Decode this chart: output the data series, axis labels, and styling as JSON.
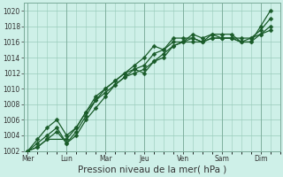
{
  "title": "",
  "xlabel": "Pression niveau de la mer( hPa )",
  "ylabel": "",
  "bg_color": "#cef0e8",
  "grid_color": "#99ccbb",
  "line_color": "#1a5c2a",
  "ylim": [
    1002,
    1021
  ],
  "yticks": [
    1002,
    1004,
    1006,
    1008,
    1010,
    1012,
    1014,
    1016,
    1018,
    1020
  ],
  "day_labels": [
    "Mer",
    "Lun",
    "Mar",
    "Jeu",
    "Ven",
    "Sam",
    "Dim"
  ],
  "day_positions": [
    0,
    1,
    2,
    3,
    4,
    5,
    6
  ],
  "xlim": [
    -0.1,
    6.5
  ],
  "line1_x": [
    0.0,
    0.25,
    0.5,
    0.75,
    1.0,
    1.25,
    1.5,
    1.75,
    2.0,
    2.25,
    2.5,
    2.75,
    3.0,
    3.25,
    3.5,
    3.75,
    4.0,
    4.25,
    4.5,
    4.75,
    5.0,
    5.25,
    5.5,
    5.75,
    6.0,
    6.25
  ],
  "line1_y": [
    1002,
    1003.5,
    1005,
    1006,
    1004,
    1005,
    1007,
    1009,
    1010,
    1011,
    1012,
    1013,
    1014,
    1015.5,
    1015,
    1016.5,
    1016.5,
    1016.5,
    1016,
    1017,
    1017,
    1017,
    1016,
    1016,
    1018,
    1020
  ],
  "line2_x": [
    0.0,
    0.25,
    0.5,
    0.75,
    1.0,
    1.25,
    1.5,
    1.75,
    2.0,
    2.25,
    2.5,
    2.75,
    3.0,
    3.25,
    3.5,
    3.75,
    4.0,
    4.25,
    4.5,
    4.75,
    5.0,
    5.25,
    5.5,
    5.75,
    6.0,
    6.25
  ],
  "line2_y": [
    1002,
    1003,
    1004,
    1005,
    1003,
    1004,
    1006,
    1007.5,
    1009,
    1010.5,
    1011.5,
    1012.5,
    1012,
    1013.5,
    1014.5,
    1015.5,
    1016,
    1016.5,
    1016,
    1016.5,
    1016.5,
    1016.5,
    1016,
    1016,
    1017,
    1018
  ],
  "line3_x": [
    0.0,
    0.25,
    0.5,
    0.75,
    1.0,
    1.25,
    1.5,
    1.75,
    2.0,
    2.25,
    2.5,
    2.75,
    3.0,
    3.25,
    3.5,
    3.75,
    4.0,
    4.25,
    4.5,
    4.75,
    5.0,
    5.25,
    5.5,
    5.75,
    6.0,
    6.25
  ],
  "line3_y": [
    1002,
    1002.5,
    1003.5,
    1004.5,
    1003,
    1004.5,
    1006.5,
    1008.5,
    1010,
    1011,
    1012,
    1012.5,
    1013,
    1014.5,
    1015,
    1016,
    1016,
    1017,
    1016.5,
    1017,
    1016.5,
    1016.5,
    1016.5,
    1016.5,
    1017.5,
    1019
  ],
  "line4_x": [
    0.0,
    0.25,
    0.5,
    1.0,
    1.25,
    1.5,
    1.75,
    2.0,
    2.25,
    2.5,
    2.75,
    3.0,
    3.25,
    3.5,
    3.75,
    4.0,
    4.25,
    4.5,
    4.75,
    5.0,
    5.25,
    5.5,
    5.75,
    6.0,
    6.25
  ],
  "line4_y": [
    1002,
    1002.5,
    1003.5,
    1003.5,
    1005,
    1007,
    1008.5,
    1009.5,
    1010.5,
    1011.5,
    1012,
    1012.5,
    1013.5,
    1014,
    1015.5,
    1016,
    1016,
    1016,
    1016.5,
    1016.5,
    1016.5,
    1016,
    1016.5,
    1017,
    1017.5
  ],
  "marker_size": 2.5,
  "line_width": 0.9,
  "tick_fontsize": 5.5,
  "xlabel_fontsize": 7.5
}
